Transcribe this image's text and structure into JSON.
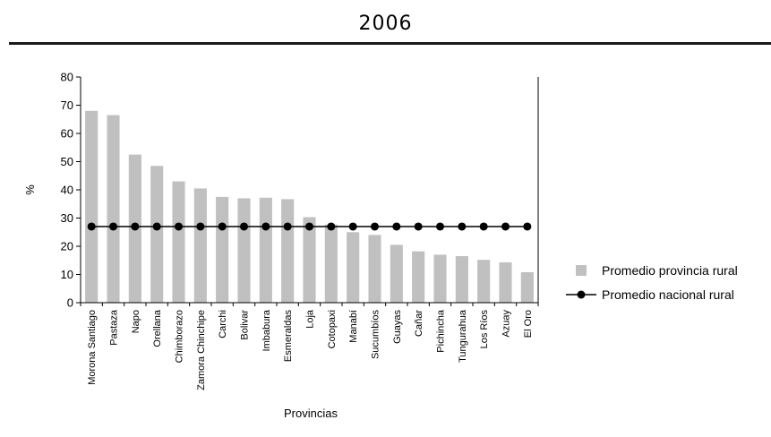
{
  "page": {
    "title": "2006"
  },
  "chart_data": {
    "type": "bar",
    "title": "",
    "xlabel": "Provincias",
    "ylabel": "%",
    "ylim": [
      0,
      80
    ],
    "yticks": [
      0,
      10,
      20,
      30,
      40,
      50,
      60,
      70,
      80
    ],
    "grid": false,
    "legend_position": "right",
    "categories": [
      "Morona Santiago",
      "Pastaza",
      "Napo",
      "Orellana",
      "Chimborazo",
      "Zamora Chinchipe",
      "Carchi",
      "Bolivar",
      "Imbabura",
      "Esmeraldas",
      "Loja",
      "Cotopaxi",
      "Manabí",
      "Sucumbíos",
      "Guayas",
      "Cañar",
      "Pichincha",
      "Tungurahua",
      "Los Ríos",
      "Azuay",
      "El Oro"
    ],
    "series": [
      {
        "name": "Promedio provincia rural",
        "kind": "bar",
        "color": "#c0c0c0",
        "values": [
          68,
          66.5,
          52.5,
          48.5,
          43,
          40.5,
          37.5,
          37,
          37.2,
          36.7,
          30.3,
          27.7,
          25,
          24,
          20.5,
          18.2,
          17,
          16.5,
          15.2,
          14.3,
          10.8
        ]
      },
      {
        "name": "Promedio nacional rural",
        "kind": "line",
        "color": "#000000",
        "values": [
          27,
          27,
          27,
          27,
          27,
          27,
          27,
          27,
          27,
          27,
          27,
          27,
          27,
          27,
          27,
          27,
          27,
          27,
          27,
          27,
          27
        ]
      }
    ]
  }
}
